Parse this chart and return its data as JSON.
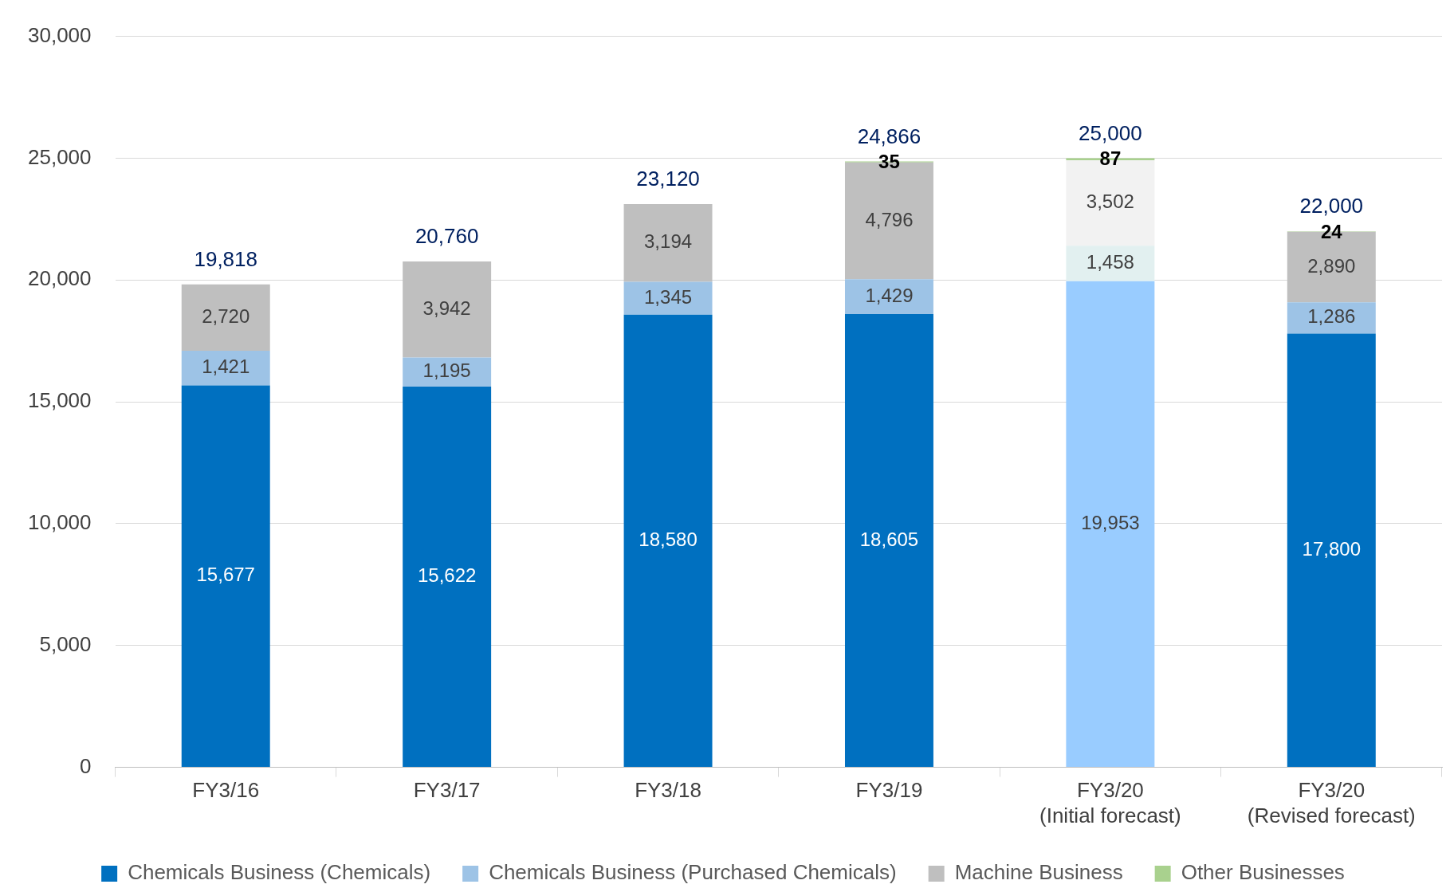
{
  "chart_data": {
    "type": "bar",
    "stacked": true,
    "categories": [
      "FY3/16",
      "FY3/17",
      "FY3/18",
      "FY3/19",
      "FY3/20\n(Initial forecast)",
      "FY3/20\n(Revised forecast)"
    ],
    "series": [
      {
        "name": "Chemicals Business (Chemicals)",
        "color": "#0070c0",
        "colors": [
          "#0070c0",
          "#0070c0",
          "#0070c0",
          "#0070c0",
          "#99ccff",
          "#0070c0"
        ],
        "values": [
          15677,
          15622,
          18580,
          18605,
          19953,
          17800
        ],
        "value_labels": [
          "15,677",
          "15,622",
          "18,580",
          "18,605",
          "19,953",
          "17,800"
        ]
      },
      {
        "name": "Chemicals Business (Purchased Chemicals)",
        "color": "#9dc3e6",
        "colors": [
          "#9dc3e6",
          "#9dc3e6",
          "#9dc3e6",
          "#9dc3e6",
          "#e2f0f0",
          "#9dc3e6"
        ],
        "values": [
          1421,
          1195,
          1345,
          1429,
          1458,
          1286
        ],
        "value_labels": [
          "1,421",
          "1,195",
          "1,345",
          "1,429",
          "1,458",
          "1,286"
        ]
      },
      {
        "name": "Machine Business",
        "color": "#bfbfbf",
        "colors": [
          "#bfbfbf",
          "#bfbfbf",
          "#bfbfbf",
          "#bfbfbf",
          "#f2f2f2",
          "#bfbfbf"
        ],
        "values": [
          2720,
          3942,
          3194,
          4796,
          3502,
          2890
        ],
        "value_labels": [
          "2,720",
          "3,942",
          "3,194",
          "4,796",
          "3,502",
          "2,890"
        ]
      },
      {
        "name": "Other Businesses",
        "color": "#a9d18e",
        "values": [
          null,
          null,
          null,
          35,
          87,
          24
        ],
        "value_labels": [
          null,
          null,
          null,
          "35",
          "87",
          "24"
        ]
      }
    ],
    "totals": [
      "19,818",
      "20,760",
      "23,120",
      "24,866",
      "25,000",
      "22,000"
    ],
    "ylim": [
      0,
      30000
    ],
    "yticks": [
      {
        "value": 0,
        "label": "0"
      },
      {
        "value": 5000,
        "label": "5,000"
      },
      {
        "value": 10000,
        "label": "10,000"
      },
      {
        "value": 15000,
        "label": "15,000"
      },
      {
        "value": 20000,
        "label": "20,000"
      },
      {
        "value": 25000,
        "label": "25,000"
      },
      {
        "value": 30000,
        "label": "30,000"
      }
    ],
    "grid": "y",
    "legend": "bottom"
  }
}
